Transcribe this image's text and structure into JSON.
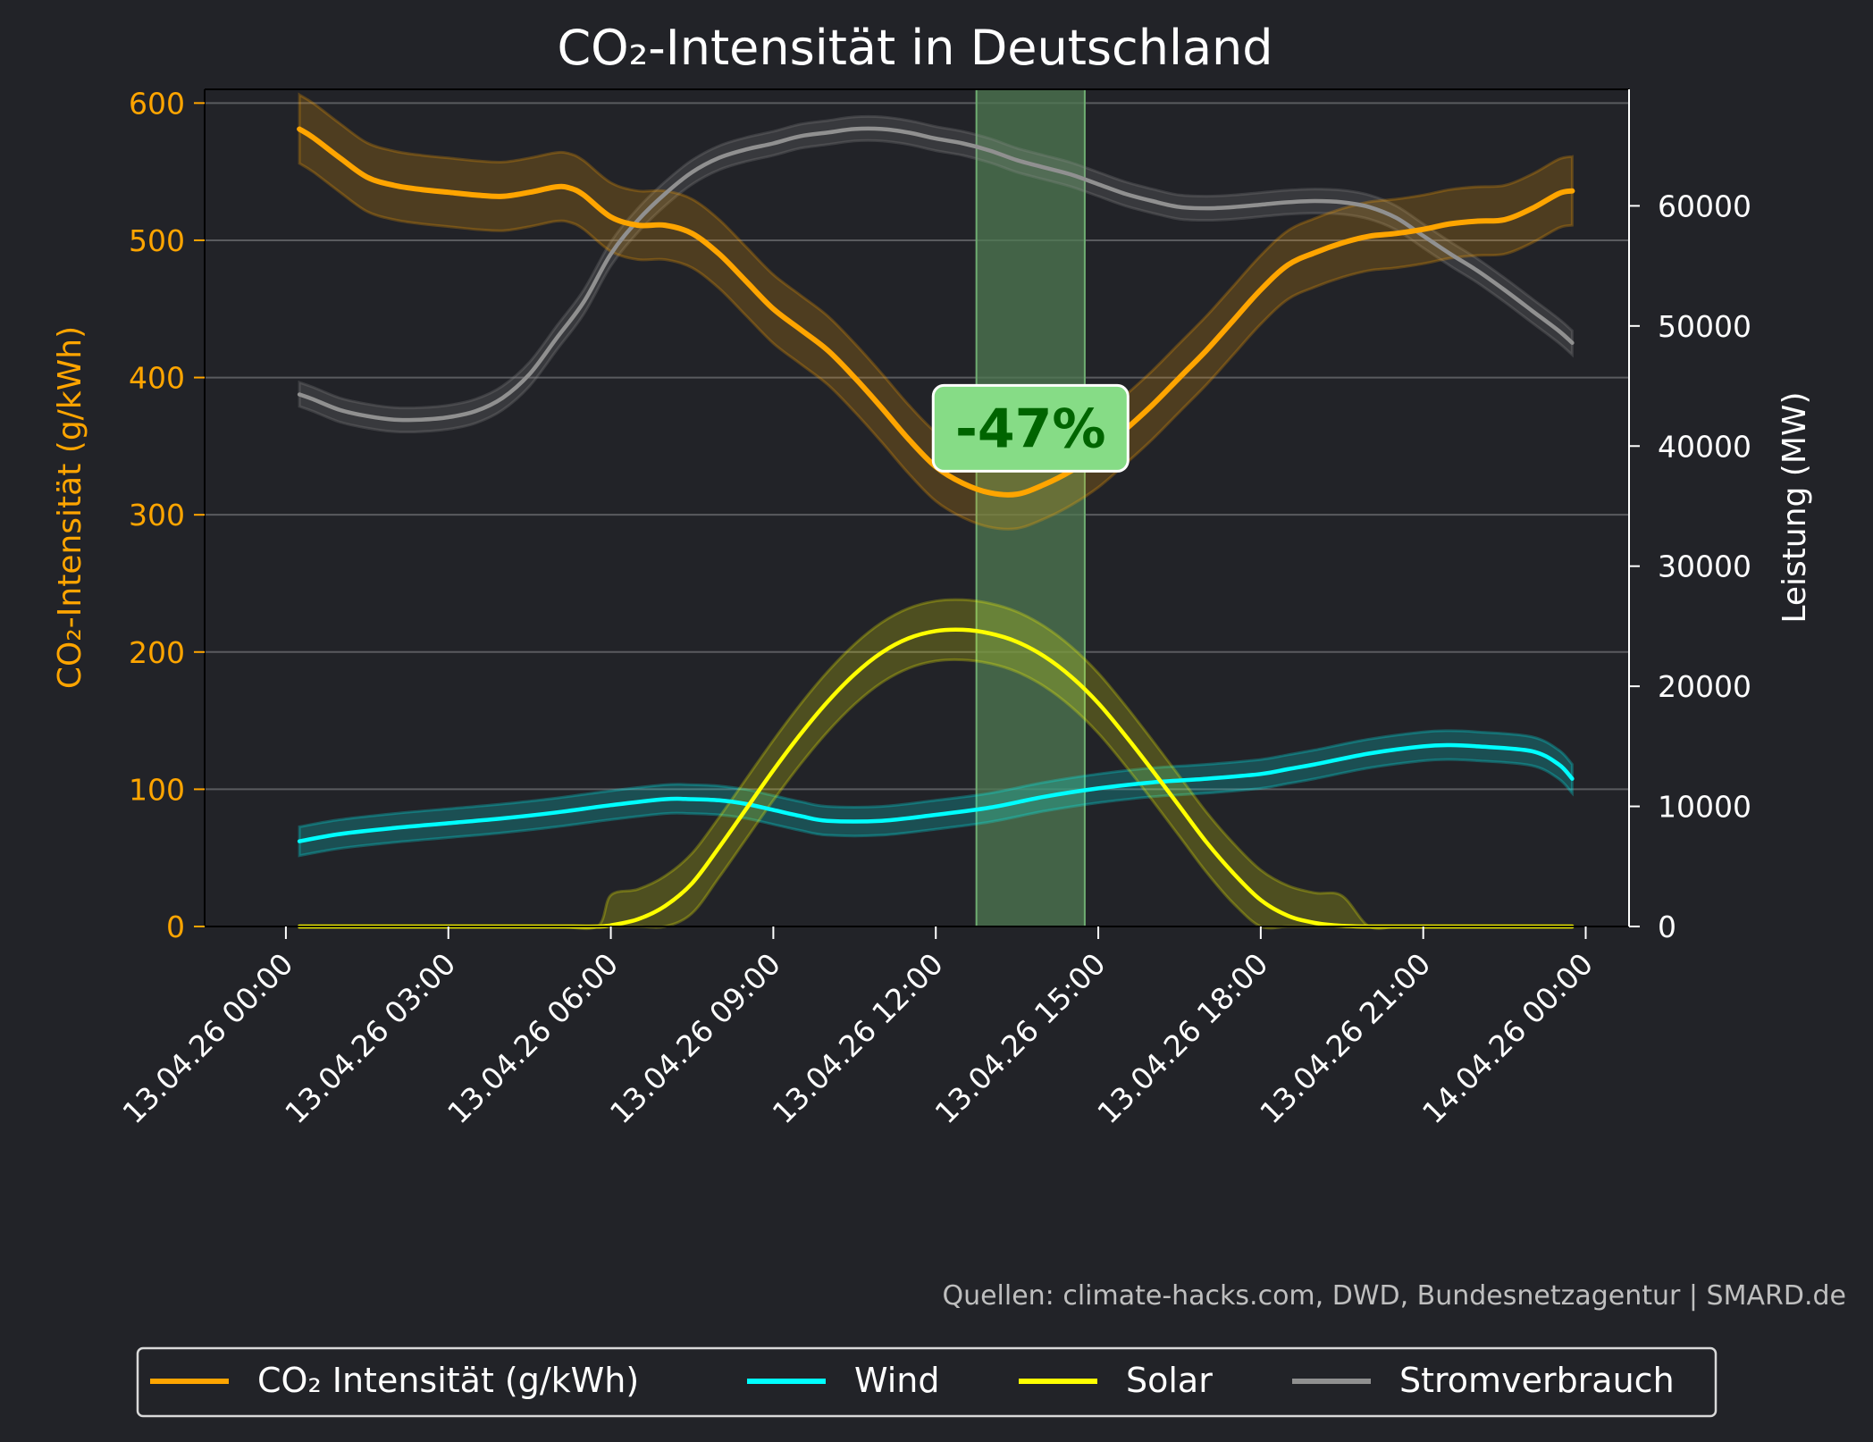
{
  "chart_data": {
    "type": "line",
    "title": "CO₂-Intensität in Deutschland",
    "ylabel_left": "CO₂-Intensität (g/kWh)",
    "ylabel_right": "Leistung (MW)",
    "ylim_left": [
      0,
      610
    ],
    "ylim_right": [
      0,
      69700
    ],
    "xlim_hours": [
      -1.5,
      24.8
    ],
    "left_ticks": [
      0,
      100,
      200,
      300,
      400,
      500,
      600
    ],
    "right_ticks": [
      0,
      10000,
      20000,
      30000,
      40000,
      50000,
      60000
    ],
    "x_tick_hours": [
      0,
      3,
      6,
      9,
      12,
      15,
      18,
      21,
      24
    ],
    "x_tick_labels": [
      "13.04.26 00:00",
      "13.04.26 03:00",
      "13.04.26 06:00",
      "13.04.26 09:00",
      "13.04.26 12:00",
      "13.04.26 15:00",
      "13.04.26 18:00",
      "13.04.26 21:00",
      "14.04.26 00:00"
    ],
    "highlight": {
      "x_start_hour": 12.75,
      "x_end_hour": 14.75,
      "color": "#4f7a52"
    },
    "annotation": {
      "text": "-47%",
      "x_hour": 13.75,
      "y": 363
    },
    "source": "Quellen: climate-hacks.com, DWD, Bundesnetzagentur | SMARD.de",
    "grid": "horizontal",
    "legend_position": "bottom-center",
    "series": [
      {
        "name": "CO₂ Intensität (g/kWh)",
        "axis": "left",
        "color": "#ffa500",
        "band": 25,
        "x": [
          0.25,
          0.5,
          1,
          1.5,
          2,
          2.5,
          3,
          3.5,
          4,
          4.5,
          5,
          5.25,
          5.5,
          6,
          6.5,
          7,
          7.5,
          8,
          8.5,
          9,
          9.5,
          10,
          10.5,
          11,
          11.5,
          12,
          12.5,
          13,
          13.5,
          14,
          14.5,
          15,
          15.5,
          16,
          16.5,
          17,
          17.5,
          18,
          18.5,
          19,
          19.5,
          20,
          20.5,
          21,
          21.5,
          22,
          22.5,
          23,
          23.5,
          23.75
        ],
        "y": [
          581,
          575,
          560,
          546,
          540,
          537,
          535,
          533,
          532,
          535,
          539,
          538,
          533,
          517,
          511,
          511,
          505,
          490,
          470,
          450,
          435,
          420,
          400,
          378,
          355,
          335,
          323,
          316,
          315,
          322,
          332,
          345,
          362,
          380,
          400,
          420,
          442,
          464,
          482,
          491,
          498,
          503,
          505,
          508,
          512,
          514,
          515,
          523,
          534,
          536
        ]
      },
      {
        "name": "Wind",
        "axis": "right",
        "color": "#00ffff",
        "band": 1200,
        "x": [
          0.25,
          1,
          2,
          3,
          4,
          5,
          6,
          7,
          7.5,
          8,
          8.5,
          9,
          9.5,
          10,
          11,
          12,
          13,
          14,
          15,
          16,
          17,
          18,
          18.5,
          19,
          20,
          21,
          21.5,
          22,
          23,
          23.5,
          23.75
        ],
        "y": [
          7100,
          7700,
          8200,
          8600,
          9000,
          9500,
          10100,
          10600,
          10600,
          10500,
          10200,
          9700,
          9200,
          8800,
          8800,
          9300,
          9900,
          10800,
          11500,
          12000,
          12300,
          12700,
          13100,
          13500,
          14400,
          15000,
          15100,
          15000,
          14600,
          13500,
          12300
        ]
      },
      {
        "name": "Solar",
        "axis": "right",
        "color": "#ffff00",
        "band": 2500,
        "x": [
          0.25,
          1,
          2,
          3,
          4,
          5,
          5.75,
          6,
          6.5,
          7,
          7.5,
          8,
          8.5,
          9,
          9.5,
          10,
          10.5,
          11,
          11.5,
          12,
          12.5,
          13,
          13.5,
          14,
          14.5,
          15,
          15.5,
          16,
          16.5,
          17,
          17.5,
          18,
          18.5,
          19,
          19.5,
          20,
          20.5,
          21,
          22,
          23,
          23.75
        ],
        "y": [
          0,
          0,
          0,
          0,
          0,
          0,
          0,
          100,
          600,
          1700,
          3600,
          6600,
          9800,
          13000,
          16000,
          18700,
          21000,
          22800,
          24000,
          24600,
          24700,
          24400,
          23700,
          22500,
          20800,
          18600,
          15900,
          13000,
          10000,
          7000,
          4400,
          2200,
          900,
          300,
          50,
          0,
          0,
          0,
          0,
          0,
          0
        ]
      },
      {
        "name": "Stromverbrauch",
        "axis": "right",
        "color": "#909090",
        "band": 1000,
        "x": [
          0.25,
          0.5,
          1,
          1.5,
          2,
          2.5,
          3,
          3.5,
          4,
          4.5,
          5,
          5.5,
          6,
          6.5,
          7,
          7.5,
          8,
          8.5,
          9,
          9.5,
          10,
          10.5,
          11,
          11.5,
          12,
          12.5,
          13,
          13.5,
          14,
          14.5,
          15,
          15.5,
          16,
          16.5,
          17,
          17.5,
          18,
          18.5,
          19,
          19.5,
          20,
          20.5,
          21,
          21.5,
          22,
          22.5,
          23,
          23.5,
          23.75
        ],
        "y": [
          44300,
          43900,
          43000,
          42500,
          42200,
          42200,
          42400,
          42900,
          44000,
          46000,
          49000,
          52000,
          56000,
          58800,
          61000,
          62800,
          64000,
          64700,
          65200,
          65800,
          66100,
          66400,
          66400,
          66100,
          65600,
          65200,
          64600,
          63800,
          63200,
          62600,
          61800,
          61000,
          60400,
          59900,
          59800,
          59900,
          60100,
          60300,
          60400,
          60300,
          59900,
          59000,
          57500,
          56000,
          54600,
          53000,
          51300,
          49600,
          48600
        ]
      }
    ]
  }
}
